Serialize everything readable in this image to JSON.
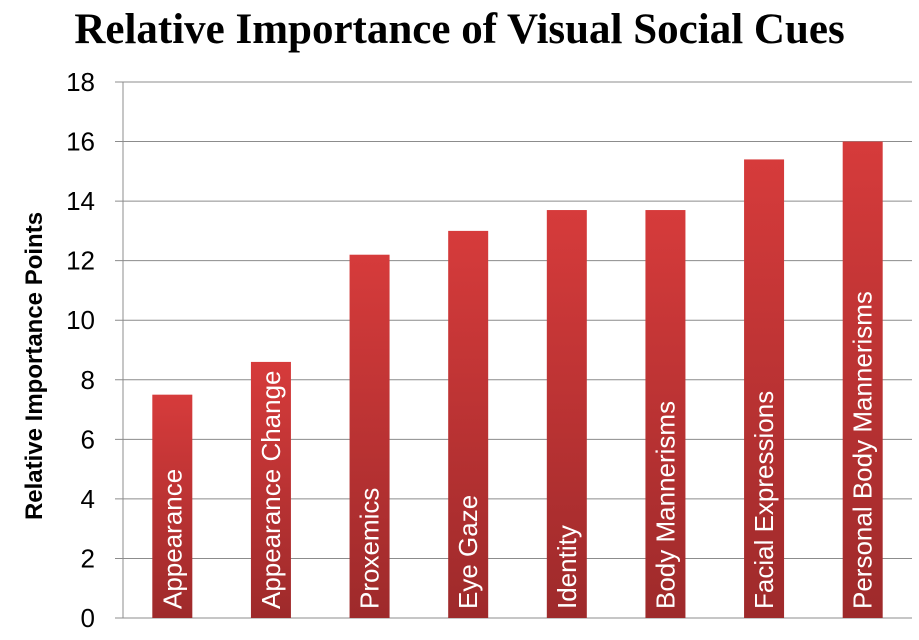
{
  "chart_data": {
    "type": "bar",
    "title": "Relative Importance of Visual Social Cues",
    "ylabel": "Relative Importance Points",
    "xlabel": "",
    "ylim": [
      0,
      18
    ],
    "yticks": [
      0,
      2,
      4,
      6,
      8,
      10,
      12,
      14,
      16,
      18
    ],
    "grid": true,
    "legend": "none",
    "categories": [
      "Appearance",
      "Appearance Change",
      "Proxemics",
      "Eye Gaze",
      "Identity",
      "Body Mannerisms",
      "Facial Expressions",
      "Personal Body Mannerisms"
    ],
    "values": [
      7.5,
      8.6,
      12.2,
      13.0,
      13.7,
      13.7,
      15.4,
      16.0
    ],
    "bar_color_top": "#d63b3b",
    "bar_color_bottom": "#9e2a2b",
    "gridline_color": "#8c8c8c"
  }
}
